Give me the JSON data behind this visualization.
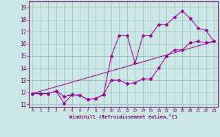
{
  "xlabel": "Windchill (Refroidissement éolien,°C)",
  "background_color": "#cce8e4",
  "grid_color": "#aacccc",
  "line_color": "#990099",
  "xlim": [
    -0.5,
    23.5
  ],
  "ylim": [
    10.8,
    19.5
  ],
  "yticks": [
    11,
    12,
    13,
    14,
    15,
    16,
    17,
    18,
    19
  ],
  "xticks": [
    0,
    1,
    2,
    3,
    4,
    5,
    6,
    7,
    8,
    9,
    10,
    11,
    12,
    13,
    14,
    15,
    16,
    17,
    18,
    19,
    20,
    21,
    22,
    23
  ],
  "series1_x": [
    0,
    1,
    2,
    3,
    4,
    5,
    6,
    7,
    8,
    9,
    10,
    11,
    12,
    13,
    14,
    15,
    16,
    17,
    18,
    19,
    20,
    21,
    22,
    23
  ],
  "series1_y": [
    11.9,
    11.9,
    11.9,
    12.1,
    11.1,
    11.8,
    11.75,
    11.4,
    11.5,
    11.8,
    13.0,
    13.0,
    12.7,
    12.8,
    13.1,
    13.1,
    14.0,
    15.0,
    15.5,
    15.5,
    16.1,
    16.2,
    16.1,
    16.2
  ],
  "series2_x": [
    0,
    1,
    2,
    3,
    4,
    5,
    6,
    7,
    8,
    9,
    10,
    11,
    12,
    13,
    14,
    15,
    16,
    17,
    18,
    19,
    20,
    21,
    22,
    23
  ],
  "series2_y": [
    11.9,
    11.9,
    11.9,
    12.1,
    11.65,
    11.8,
    11.75,
    11.4,
    11.5,
    11.8,
    15.0,
    16.7,
    16.7,
    14.4,
    16.7,
    16.7,
    17.6,
    17.6,
    18.2,
    18.7,
    18.1,
    17.3,
    17.1,
    16.2
  ],
  "series3_x": [
    0,
    23
  ],
  "series3_y": [
    11.9,
    16.2
  ]
}
